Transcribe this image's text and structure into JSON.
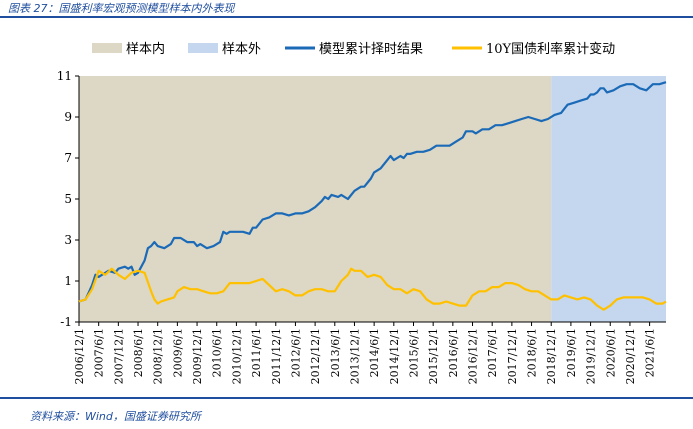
{
  "caption": "图表 27：国盛利率宏观预测模型样本内外表现",
  "source": "资料来源：Wind，国盛证券研究所",
  "colors": {
    "in_sample_bg": "#ddd8c5",
    "out_sample_bg": "#c5d7ee",
    "model": "#1b6ab8",
    "bond": "#ffc000",
    "rule": "#1f4e9e"
  },
  "chart_data": {
    "type": "line",
    "legend_position": "top",
    "ylim": [
      -1,
      11
    ],
    "yticks": [
      -1,
      1,
      3,
      5,
      7,
      9,
      11
    ],
    "x_tick_labels": [
      "2006/12/1",
      "2007/6/1",
      "2007/12/1",
      "2008/6/1",
      "2008/12/1",
      "2009/6/1",
      "2009/12/1",
      "2010/6/1",
      "2010/12/1",
      "2011/6/1",
      "2011/12/1",
      "2012/6/1",
      "2012/12/1",
      "2013/6/1",
      "2013/12/1",
      "2014/6/1",
      "2014/12/1",
      "2015/6/1",
      "2015/12/1",
      "2016/6/1",
      "2016/12/1",
      "2017/6/1",
      "2017/12/1",
      "2018/6/1",
      "2018/12/1",
      "2019/6/1",
      "2019/12/1",
      "2020/6/1",
      "2020/12/1",
      "2021/6/1"
    ],
    "x_range": [
      "2006/12/1",
      "2021/11/1"
    ],
    "regions": [
      {
        "name": "样本内",
        "from": "2006/12/1",
        "to": "2018/12/1"
      },
      {
        "name": "样本外",
        "from": "2018/12/1",
        "to": "2021/11/1"
      }
    ],
    "series": [
      {
        "name": "模型累计择时结果",
        "points": [
          [
            "2006/12/1",
            0.0
          ],
          [
            "2007/2/1",
            0.1
          ],
          [
            "2007/4/1",
            0.8
          ],
          [
            "2007/5/1",
            1.3
          ],
          [
            "2007/6/1",
            1.2
          ],
          [
            "2007/7/1",
            1.3
          ],
          [
            "2007/9/1",
            1.5
          ],
          [
            "2007/11/1",
            1.4
          ],
          [
            "2007/12/1",
            1.6
          ],
          [
            "2008/2/1",
            1.7
          ],
          [
            "2008/3/1",
            1.6
          ],
          [
            "2008/4/1",
            1.7
          ],
          [
            "2008/5/1",
            1.3
          ],
          [
            "2008/6/1",
            1.4
          ],
          [
            "2008/8/1",
            2.0
          ],
          [
            "2008/9/1",
            2.6
          ],
          [
            "2008/10/1",
            2.7
          ],
          [
            "2008/11/1",
            2.9
          ],
          [
            "2008/12/1",
            2.7
          ],
          [
            "2009/2/1",
            2.6
          ],
          [
            "2009/4/1",
            2.8
          ],
          [
            "2009/5/1",
            3.1
          ],
          [
            "2009/6/1",
            3.1
          ],
          [
            "2009/7/1",
            3.1
          ],
          [
            "2009/9/1",
            2.9
          ],
          [
            "2009/11/1",
            2.9
          ],
          [
            "2009/12/1",
            2.7
          ],
          [
            "2010/1/1",
            2.8
          ],
          [
            "2010/3/1",
            2.6
          ],
          [
            "2010/5/1",
            2.7
          ],
          [
            "2010/7/1",
            2.9
          ],
          [
            "2010/8/1",
            3.4
          ],
          [
            "2010/9/1",
            3.3
          ],
          [
            "2010/10/1",
            3.4
          ],
          [
            "2010/12/1",
            3.4
          ],
          [
            "2011/2/1",
            3.4
          ],
          [
            "2011/4/1",
            3.3
          ],
          [
            "2011/5/1",
            3.6
          ],
          [
            "2011/6/1",
            3.6
          ],
          [
            "2011/8/1",
            4.0
          ],
          [
            "2011/10/1",
            4.1
          ],
          [
            "2011/12/1",
            4.3
          ],
          [
            "2012/2/1",
            4.3
          ],
          [
            "2012/4/1",
            4.2
          ],
          [
            "2012/6/1",
            4.3
          ],
          [
            "2012/8/1",
            4.3
          ],
          [
            "2012/10/1",
            4.4
          ],
          [
            "2012/12/1",
            4.6
          ],
          [
            "2013/2/1",
            4.9
          ],
          [
            "2013/3/1",
            5.1
          ],
          [
            "2013/4/1",
            5.0
          ],
          [
            "2013/5/1",
            5.2
          ],
          [
            "2013/7/1",
            5.1
          ],
          [
            "2013/8/1",
            5.2
          ],
          [
            "2013/10/1",
            5.0
          ],
          [
            "2013/12/1",
            5.4
          ],
          [
            "2014/2/1",
            5.6
          ],
          [
            "2014/3/1",
            5.6
          ],
          [
            "2014/5/1",
            6.0
          ],
          [
            "2014/6/1",
            6.3
          ],
          [
            "2014/8/1",
            6.5
          ],
          [
            "2014/10/1",
            6.9
          ],
          [
            "2014/11/1",
            7.1
          ],
          [
            "2014/12/1",
            6.9
          ],
          [
            "2015/2/1",
            7.1
          ],
          [
            "2015/3/1",
            7.0
          ],
          [
            "2015/4/1",
            7.2
          ],
          [
            "2015/5/1",
            7.2
          ],
          [
            "2015/7/1",
            7.3
          ],
          [
            "2015/9/1",
            7.3
          ],
          [
            "2015/11/1",
            7.4
          ],
          [
            "2016/1/1",
            7.6
          ],
          [
            "2016/3/1",
            7.6
          ],
          [
            "2016/5/1",
            7.6
          ],
          [
            "2016/7/1",
            7.8
          ],
          [
            "2016/9/1",
            8.0
          ],
          [
            "2016/10/1",
            8.3
          ],
          [
            "2016/12/1",
            8.3
          ],
          [
            "2017/1/1",
            8.2
          ],
          [
            "2017/3/1",
            8.4
          ],
          [
            "2017/5/1",
            8.4
          ],
          [
            "2017/7/1",
            8.6
          ],
          [
            "2017/9/1",
            8.6
          ],
          [
            "2017/11/1",
            8.7
          ],
          [
            "2018/1/1",
            8.8
          ],
          [
            "2018/3/1",
            8.9
          ],
          [
            "2018/5/1",
            9.0
          ],
          [
            "2018/7/1",
            8.9
          ],
          [
            "2018/9/1",
            8.8
          ],
          [
            "2018/11/1",
            8.9
          ],
          [
            "2019/1/1",
            9.1
          ],
          [
            "2019/3/1",
            9.2
          ],
          [
            "2019/4/1",
            9.4
          ],
          [
            "2019/5/1",
            9.6
          ],
          [
            "2019/7/1",
            9.7
          ],
          [
            "2019/9/1",
            9.8
          ],
          [
            "2019/11/1",
            9.9
          ],
          [
            "2019/12/1",
            10.1
          ],
          [
            "2020/1/1",
            10.1
          ],
          [
            "2020/2/1",
            10.2
          ],
          [
            "2020/3/1",
            10.4
          ],
          [
            "2020/4/1",
            10.4
          ],
          [
            "2020/5/1",
            10.2
          ],
          [
            "2020/7/1",
            10.3
          ],
          [
            "2020/9/1",
            10.5
          ],
          [
            "2020/11/1",
            10.6
          ],
          [
            "2021/1/1",
            10.6
          ],
          [
            "2021/3/1",
            10.4
          ],
          [
            "2021/5/1",
            10.3
          ],
          [
            "2021/7/1",
            10.6
          ],
          [
            "2021/9/1",
            10.6
          ],
          [
            "2021/11/1",
            10.7
          ]
        ]
      },
      {
        "name": "10Y国债利率累计变动",
        "points": [
          [
            "2006/12/1",
            0.0
          ],
          [
            "2007/2/1",
            0.1
          ],
          [
            "2007/4/1",
            0.6
          ],
          [
            "2007/6/1",
            1.5
          ],
          [
            "2007/8/1",
            1.3
          ],
          [
            "2007/10/1",
            1.6
          ],
          [
            "2007/12/1",
            1.3
          ],
          [
            "2008/2/1",
            1.1
          ],
          [
            "2008/4/1",
            1.4
          ],
          [
            "2008/6/1",
            1.5
          ],
          [
            "2008/8/1",
            1.4
          ],
          [
            "2008/10/1",
            0.5
          ],
          [
            "2008/11/1",
            0.1
          ],
          [
            "2008/12/1",
            -0.1
          ],
          [
            "2009/1/1",
            0.0
          ],
          [
            "2009/3/1",
            0.1
          ],
          [
            "2009/5/1",
            0.2
          ],
          [
            "2009/6/1",
            0.5
          ],
          [
            "2009/8/1",
            0.7
          ],
          [
            "2009/10/1",
            0.6
          ],
          [
            "2009/12/1",
            0.6
          ],
          [
            "2010/2/1",
            0.5
          ],
          [
            "2010/4/1",
            0.4
          ],
          [
            "2010/6/1",
            0.4
          ],
          [
            "2010/8/1",
            0.5
          ],
          [
            "2010/10/1",
            0.9
          ],
          [
            "2010/12/1",
            0.9
          ],
          [
            "2011/2/1",
            0.9
          ],
          [
            "2011/4/1",
            0.9
          ],
          [
            "2011/6/1",
            1.0
          ],
          [
            "2011/8/1",
            1.1
          ],
          [
            "2011/10/1",
            0.8
          ],
          [
            "2011/12/1",
            0.5
          ],
          [
            "2012/2/1",
            0.6
          ],
          [
            "2012/4/1",
            0.5
          ],
          [
            "2012/6/1",
            0.3
          ],
          [
            "2012/8/1",
            0.3
          ],
          [
            "2012/10/1",
            0.5
          ],
          [
            "2012/12/1",
            0.6
          ],
          [
            "2013/2/1",
            0.6
          ],
          [
            "2013/4/1",
            0.5
          ],
          [
            "2013/6/1",
            0.5
          ],
          [
            "2013/8/1",
            1.0
          ],
          [
            "2013/10/1",
            1.3
          ],
          [
            "2013/11/1",
            1.6
          ],
          [
            "2013/12/1",
            1.5
          ],
          [
            "2014/2/1",
            1.5
          ],
          [
            "2014/4/1",
            1.2
          ],
          [
            "2014/6/1",
            1.3
          ],
          [
            "2014/8/1",
            1.2
          ],
          [
            "2014/10/1",
            0.8
          ],
          [
            "2014/12/1",
            0.6
          ],
          [
            "2015/2/1",
            0.6
          ],
          [
            "2015/4/1",
            0.4
          ],
          [
            "2015/6/1",
            0.6
          ],
          [
            "2015/8/1",
            0.5
          ],
          [
            "2015/10/1",
            0.1
          ],
          [
            "2015/12/1",
            -0.1
          ],
          [
            "2016/2/1",
            -0.1
          ],
          [
            "2016/4/1",
            0.0
          ],
          [
            "2016/6/1",
            -0.1
          ],
          [
            "2016/8/1",
            -0.2
          ],
          [
            "2016/10/1",
            -0.2
          ],
          [
            "2016/12/1",
            0.3
          ],
          [
            "2017/2/1",
            0.5
          ],
          [
            "2017/4/1",
            0.5
          ],
          [
            "2017/6/1",
            0.7
          ],
          [
            "2017/8/1",
            0.7
          ],
          [
            "2017/10/1",
            0.9
          ],
          [
            "2017/12/1",
            0.9
          ],
          [
            "2018/2/1",
            0.8
          ],
          [
            "2018/4/1",
            0.6
          ],
          [
            "2018/6/1",
            0.5
          ],
          [
            "2018/8/1",
            0.5
          ],
          [
            "2018/10/1",
            0.3
          ],
          [
            "2018/12/1",
            0.1
          ],
          [
            "2019/2/1",
            0.1
          ],
          [
            "2019/4/1",
            0.3
          ],
          [
            "2019/6/1",
            0.2
          ],
          [
            "2019/8/1",
            0.1
          ],
          [
            "2019/10/1",
            0.2
          ],
          [
            "2019/12/1",
            0.1
          ],
          [
            "2020/2/1",
            -0.2
          ],
          [
            "2020/4/1",
            -0.4
          ],
          [
            "2020/6/1",
            -0.2
          ],
          [
            "2020/8/1",
            0.1
          ],
          [
            "2020/10/1",
            0.2
          ],
          [
            "2020/12/1",
            0.2
          ],
          [
            "2021/2/1",
            0.2
          ],
          [
            "2021/4/1",
            0.2
          ],
          [
            "2021/6/1",
            0.1
          ],
          [
            "2021/8/1",
            -0.1
          ],
          [
            "2021/10/1",
            -0.1
          ],
          [
            "2021/11/1",
            0.0
          ]
        ]
      }
    ]
  }
}
